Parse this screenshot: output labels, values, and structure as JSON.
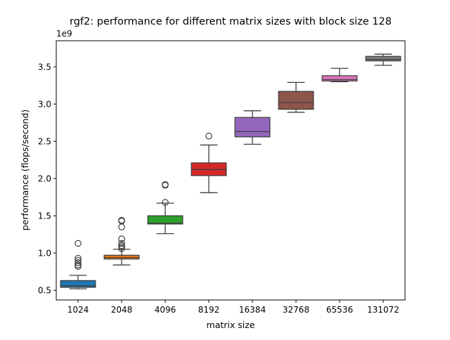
{
  "chart_data": {
    "type": "box",
    "title": "rgf2: performance for different matrix sizes with block size 128",
    "xlabel": "matrix size",
    "ylabel": "performance (flops/second)",
    "y_offset_label": "1e9",
    "ylim": [
      0.37,
      3.85
    ],
    "yticks": [
      0.5,
      1.0,
      1.5,
      2.0,
      2.5,
      3.0,
      3.5
    ],
    "ytick_labels": [
      "0.5",
      "1.0",
      "1.5",
      "2.0",
      "2.5",
      "3.0",
      "3.5"
    ],
    "grid": false,
    "legend": "none",
    "categories": [
      "1024",
      "2048",
      "4096",
      "8192",
      "16384",
      "32768",
      "65536",
      "131072"
    ],
    "series": [
      {
        "category": "1024",
        "color": "#1f77b4",
        "whisker_low": 0.52,
        "q1": 0.54,
        "median": 0.56,
        "q3": 0.63,
        "whisker_high": 0.7,
        "outliers": [
          0.82,
          0.84,
          0.87,
          0.9,
          0.93,
          1.13
        ]
      },
      {
        "category": "2048",
        "color": "#ff7f0e",
        "whisker_low": 0.84,
        "q1": 0.92,
        "median": 0.94,
        "q3": 0.97,
        "whisker_high": 1.05,
        "outliers": [
          1.06,
          1.08,
          1.1,
          1.13,
          1.19,
          1.35,
          1.43,
          1.44
        ]
      },
      {
        "category": "4096",
        "color": "#2ca02c",
        "whisker_low": 1.26,
        "q1": 1.39,
        "median": 1.4,
        "q3": 1.5,
        "whisker_high": 1.67,
        "outliers": [
          1.68,
          1.91,
          1.92
        ]
      },
      {
        "category": "8192",
        "color": "#d62728",
        "whisker_low": 1.81,
        "q1": 2.04,
        "median": 2.12,
        "q3": 2.21,
        "whisker_high": 2.45,
        "outliers": [
          2.57
        ]
      },
      {
        "category": "16384",
        "color": "#9467bd",
        "whisker_low": 2.46,
        "q1": 2.56,
        "median": 2.63,
        "q3": 2.82,
        "whisker_high": 2.91,
        "outliers": []
      },
      {
        "category": "32768",
        "color": "#8c564b",
        "whisker_low": 2.89,
        "q1": 2.93,
        "median": 3.02,
        "q3": 3.17,
        "whisker_high": 3.29,
        "outliers": []
      },
      {
        "category": "65536",
        "color": "#e377c2",
        "whisker_low": 3.3,
        "q1": 3.31,
        "median": 3.33,
        "q3": 3.38,
        "whisker_high": 3.48,
        "outliers": []
      },
      {
        "category": "131072",
        "color": "#7f7f7f",
        "whisker_low": 3.52,
        "q1": 3.58,
        "median": 3.6,
        "q3": 3.64,
        "whisker_high": 3.67,
        "outliers": []
      }
    ]
  }
}
